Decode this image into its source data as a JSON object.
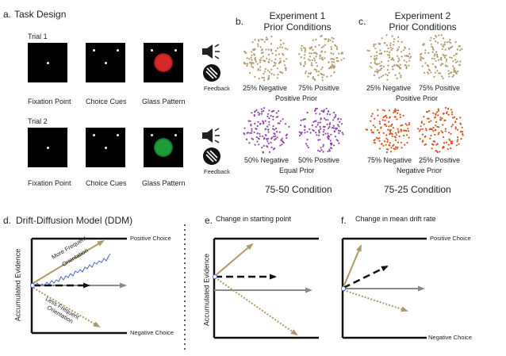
{
  "panel_a": {
    "letter": "a.",
    "title": "Task Design",
    "trial1": "Trial 1",
    "trial2": "Trial 2",
    "fixation": "Fixation Point",
    "choice_cues": "Choice Cues",
    "glass": "Glass Pattern",
    "glass2": "Glass Pattern",
    "feedback": "Feedback",
    "colors": {
      "red": "#d62828",
      "green": "#1f9d3a"
    }
  },
  "panel_b": {
    "letter": "b.",
    "title_line1": "Experiment 1",
    "title_line2": "Prior Conditions",
    "row1_left": "25% Negative",
    "row1_right": "75% Positive",
    "row1_prior": "Positive Prior",
    "row2_left": "50% Negative",
    "row2_right": "50% Positive",
    "row2_prior": "Equal Prior",
    "condition": "75-50 Condition",
    "colors": {
      "tan": "#b09a6c",
      "purple": "#8e4aa8"
    }
  },
  "panel_c": {
    "letter": "c.",
    "title_line1": "Experiment 2",
    "title_line2": "Prior Conditions",
    "row1_left": "25% Negative",
    "row1_right": "75% Positive",
    "row1_prior": "Positive Prior",
    "row2_left": "75% Negative",
    "row2_right": "25% Positive",
    "row2_prior": "Negative Prior",
    "condition": "75-25 Condition",
    "colors": {
      "tan": "#b09a6c",
      "orange": "#d9531e"
    }
  },
  "panel_d": {
    "letter": "d.",
    "title": "Drift-Diffusion Model (DDM)",
    "ylabel": "Accumulated Evidence",
    "positive": "Positive Choice",
    "negative": "Negative Choice",
    "more_freq_1": "More Frequent",
    "more_freq_2": "Orientation",
    "less_freq_1": "Less Frequent",
    "less_freq_2": "Orientation"
  },
  "panel_e": {
    "letter": "e.",
    "title": "Change in starting point",
    "ylabel": "Accumulated Evidence"
  },
  "panel_f": {
    "letter": "f.",
    "title": "Change in mean drift rate",
    "positive": "Positive Choice",
    "negative": "Negative Choice"
  },
  "colors": {
    "tan_arrow": "#ad9a6b",
    "gray_arrow": "#8a8a8a",
    "blue_walk": "#4a67c9"
  }
}
